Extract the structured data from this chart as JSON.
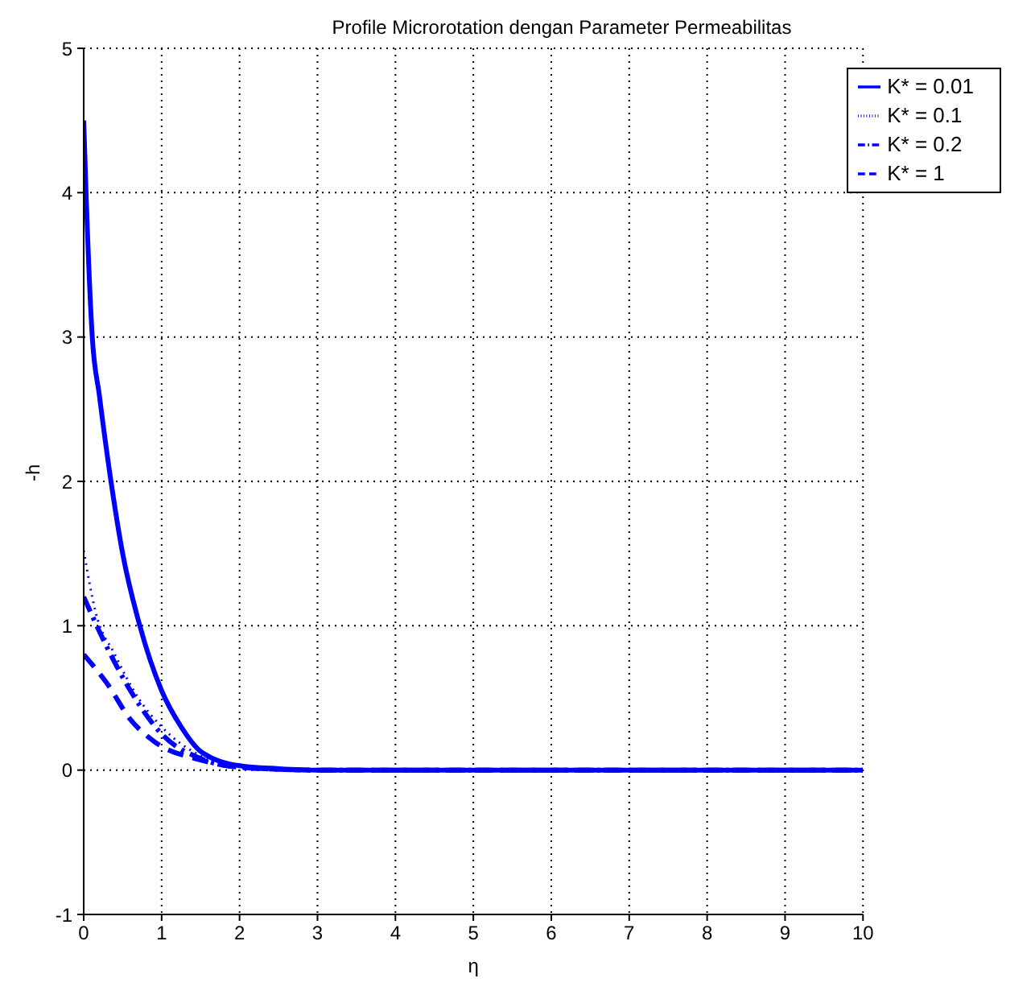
{
  "chart_data": {
    "type": "line",
    "title": "Profile Microrotation dengan Parameter Permeabilitas",
    "xlabel": "η",
    "ylabel": "-h",
    "xlim": [
      0,
      10
    ],
    "ylim": [
      -1,
      5
    ],
    "xticks": [
      0,
      1,
      2,
      3,
      4,
      5,
      6,
      7,
      8,
      9,
      10
    ],
    "yticks": [
      -1,
      0,
      1,
      2,
      3,
      4,
      5
    ],
    "grid": true,
    "legend": "top right",
    "marker": "none",
    "series": [
      {
        "name": "K* = 0.01",
        "color": "#0000ff",
        "line_style": "solid",
        "x": [
          0,
          0.03,
          0.11,
          0.2,
          0.35,
          0.5,
          0.72,
          1,
          1.25,
          1.5,
          2,
          2.5,
          3,
          4,
          6,
          8,
          10
        ],
        "values": [
          4.5,
          4,
          3,
          2.6,
          2,
          1.5,
          1,
          0.55,
          0.3,
          0.13,
          0.03,
          0.01,
          0,
          0,
          0,
          0,
          0
        ]
      },
      {
        "name": "K* = 0.1",
        "color": "#0000ff",
        "line_style": "dotted",
        "x": [
          0,
          0.15,
          0.4,
          0.7,
          1,
          1.5,
          2,
          3,
          10
        ],
        "values": [
          1.52,
          1.1,
          0.8,
          0.5,
          0.3,
          0.1,
          0.03,
          0,
          0
        ]
      },
      {
        "name": "K* = 0.2",
        "color": "#0000ff",
        "line_style": "dashdot",
        "x": [
          0,
          0.3,
          0.6,
          1,
          1.5,
          2,
          3,
          10
        ],
        "values": [
          1.2,
          0.85,
          0.55,
          0.25,
          0.08,
          0.02,
          0,
          0
        ]
      },
      {
        "name": "K* = 1",
        "color": "#0000ff",
        "line_style": "dashed",
        "x": [
          0,
          0.3,
          0.6,
          0.9,
          1.5,
          2,
          3,
          10
        ],
        "values": [
          0.8,
          0.6,
          0.35,
          0.2,
          0.07,
          0.02,
          0,
          0
        ]
      }
    ]
  }
}
